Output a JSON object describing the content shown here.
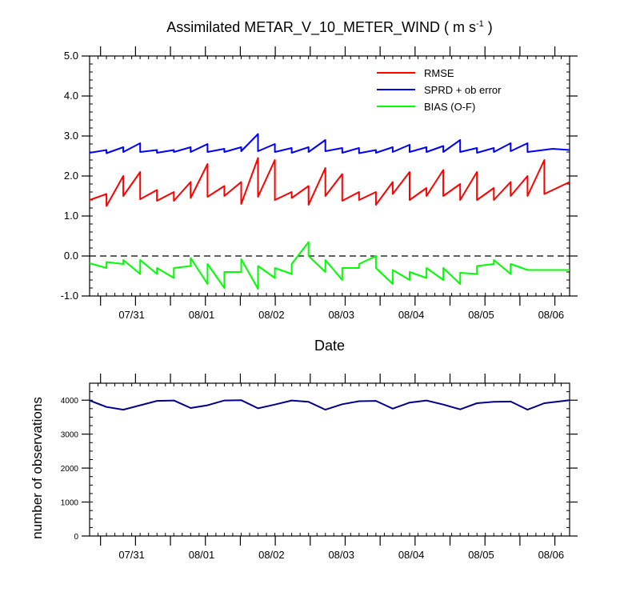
{
  "chart_data": [
    {
      "type": "line",
      "title": "Assimilated METAR_V_10_METER_WIND ( m s",
      "title_superscript": "-1",
      "title_suffix": " )",
      "xlabel": "Date",
      "ylabel": "",
      "ylim": [
        -1.0,
        5.0
      ],
      "yticks": [
        "5.0",
        "4.0",
        "3.0",
        "2.0",
        "1.0",
        "0.0",
        "-1.0"
      ],
      "ytick_values": [
        5,
        4,
        3,
        2,
        1,
        0,
        -1
      ],
      "xlim": [
        0,
        57
      ],
      "x_tick_labels": [
        {
          "label": "07/31",
          "x": 5.0
        },
        {
          "label": "08/01",
          "x": 13.3
        },
        {
          "label": "08/02",
          "x": 21.6
        },
        {
          "label": "08/03",
          "x": 29.9
        },
        {
          "label": "08/04",
          "x": 38.2
        },
        {
          "label": "08/05",
          "x": 46.5
        },
        {
          "label": "08/06",
          "x": 54.8
        }
      ],
      "zero_line": true,
      "legend": {
        "placement": "top-right",
        "entries": [
          {
            "label": "RMSE",
            "color": "#ff0000"
          },
          {
            "label": "SPRD + ob error",
            "color": "#0000ff"
          },
          {
            "label": "BIAS (O-F)",
            "color": "#00ff00"
          }
        ]
      },
      "series": [
        {
          "name": "RMSE",
          "color": "#ff0000",
          "points": [
            [
              0,
              1.4
            ],
            [
              2,
              1.55
            ],
            [
              2,
              1.25
            ],
            [
              4,
              2.0
            ],
            [
              4,
              1.5
            ],
            [
              6,
              2.1
            ],
            [
              6,
              1.42
            ],
            [
              8,
              1.65
            ],
            [
              8,
              1.38
            ],
            [
              10,
              1.6
            ],
            [
              10,
              1.38
            ],
            [
              12,
              1.85
            ],
            [
              12,
              1.45
            ],
            [
              14,
              2.3
            ],
            [
              14,
              1.48
            ],
            [
              16,
              1.75
            ],
            [
              16,
              1.5
            ],
            [
              18,
              1.85
            ],
            [
              18,
              1.3
            ],
            [
              20,
              2.45
            ],
            [
              20,
              1.48
            ],
            [
              22,
              2.4
            ],
            [
              22,
              1.4
            ],
            [
              24,
              1.6
            ],
            [
              24,
              1.45
            ],
            [
              26,
              1.75
            ],
            [
              26,
              1.28
            ],
            [
              28,
              2.2
            ],
            [
              28,
              1.5
            ],
            [
              30,
              2.05
            ],
            [
              30,
              1.38
            ],
            [
              32,
              1.6
            ],
            [
              32,
              1.4
            ],
            [
              34,
              1.6
            ],
            [
              34,
              1.28
            ],
            [
              36,
              1.85
            ],
            [
              36,
              1.55
            ],
            [
              38,
              2.1
            ],
            [
              38,
              1.4
            ],
            [
              40,
              1.7
            ],
            [
              40,
              1.5
            ],
            [
              42,
              2.15
            ],
            [
              42,
              1.5
            ],
            [
              44,
              1.8
            ],
            [
              44,
              1.4
            ],
            [
              46,
              2.1
            ],
            [
              46,
              1.4
            ],
            [
              48,
              1.7
            ],
            [
              48,
              1.4
            ],
            [
              50,
              1.85
            ],
            [
              50,
              1.5
            ],
            [
              52,
              2.0
            ],
            [
              52,
              1.5
            ],
            [
              54,
              2.4
            ],
            [
              54,
              1.55
            ],
            [
              57,
              1.85
            ]
          ]
        },
        {
          "name": "SPRD + ob error",
          "color": "#0000ff",
          "points": [
            [
              0,
              2.58
            ],
            [
              2,
              2.65
            ],
            [
              2,
              2.57
            ],
            [
              4,
              2.72
            ],
            [
              4,
              2.6
            ],
            [
              6,
              2.82
            ],
            [
              6,
              2.6
            ],
            [
              8,
              2.65
            ],
            [
              8,
              2.58
            ],
            [
              10,
              2.65
            ],
            [
              10,
              2.6
            ],
            [
              12,
              2.72
            ],
            [
              12,
              2.6
            ],
            [
              14,
              2.8
            ],
            [
              14,
              2.6
            ],
            [
              16,
              2.68
            ],
            [
              16,
              2.6
            ],
            [
              18,
              2.72
            ],
            [
              18,
              2.62
            ],
            [
              20,
              3.05
            ],
            [
              20,
              2.62
            ],
            [
              22,
              2.8
            ],
            [
              22,
              2.6
            ],
            [
              24,
              2.7
            ],
            [
              24,
              2.58
            ],
            [
              26,
              2.72
            ],
            [
              26,
              2.6
            ],
            [
              28,
              2.9
            ],
            [
              28,
              2.62
            ],
            [
              30,
              2.7
            ],
            [
              30,
              2.58
            ],
            [
              32,
              2.7
            ],
            [
              32,
              2.57
            ],
            [
              34,
              2.65
            ],
            [
              34,
              2.58
            ],
            [
              36,
              2.72
            ],
            [
              36,
              2.6
            ],
            [
              38,
              2.78
            ],
            [
              38,
              2.6
            ],
            [
              40,
              2.72
            ],
            [
              40,
              2.6
            ],
            [
              42,
              2.75
            ],
            [
              42,
              2.6
            ],
            [
              44,
              2.9
            ],
            [
              44,
              2.6
            ],
            [
              46,
              2.7
            ],
            [
              46,
              2.58
            ],
            [
              48,
              2.7
            ],
            [
              48,
              2.6
            ],
            [
              50,
              2.82
            ],
            [
              50,
              2.62
            ],
            [
              52,
              2.82
            ],
            [
              52,
              2.6
            ],
            [
              55,
              2.68
            ],
            [
              57,
              2.65
            ]
          ]
        },
        {
          "name": "BIAS (O-F)",
          "color": "#00ff00",
          "points": [
            [
              0,
              -0.18
            ],
            [
              2,
              -0.3
            ],
            [
              2,
              -0.15
            ],
            [
              4,
              -0.2
            ],
            [
              4,
              -0.1
            ],
            [
              6,
              -0.45
            ],
            [
              6,
              -0.1
            ],
            [
              8,
              -0.45
            ],
            [
              8,
              -0.3
            ],
            [
              10,
              -0.55
            ],
            [
              10,
              -0.3
            ],
            [
              12,
              -0.25
            ],
            [
              12,
              -0.05
            ],
            [
              14,
              -0.7
            ],
            [
              14,
              -0.2
            ],
            [
              16,
              -0.8
            ],
            [
              16,
              -0.4
            ],
            [
              18,
              -0.4
            ],
            [
              18,
              -0.08
            ],
            [
              20,
              -0.82
            ],
            [
              20,
              -0.25
            ],
            [
              22,
              -0.55
            ],
            [
              22,
              -0.3
            ],
            [
              24,
              -0.45
            ],
            [
              24,
              -0.2
            ],
            [
              26,
              0.35
            ],
            [
              26,
              0.0
            ],
            [
              28,
              -0.4
            ],
            [
              28,
              -0.1
            ],
            [
              30,
              -0.6
            ],
            [
              30,
              -0.3
            ],
            [
              32,
              -0.3
            ],
            [
              32,
              -0.2
            ],
            [
              34,
              0.0
            ],
            [
              34,
              -0.3
            ],
            [
              36,
              -0.7
            ],
            [
              36,
              -0.35
            ],
            [
              38,
              -0.6
            ],
            [
              38,
              -0.4
            ],
            [
              40,
              -0.55
            ],
            [
              40,
              -0.3
            ],
            [
              42,
              -0.6
            ],
            [
              42,
              -0.3
            ],
            [
              44,
              -0.7
            ],
            [
              44,
              -0.42
            ],
            [
              46,
              -0.45
            ],
            [
              46,
              -0.25
            ],
            [
              48,
              -0.2
            ],
            [
              48,
              -0.1
            ],
            [
              50,
              -0.45
            ],
            [
              50,
              -0.2
            ],
            [
              52,
              -0.35
            ],
            [
              57,
              -0.35
            ]
          ]
        }
      ]
    },
    {
      "type": "line",
      "title": "",
      "xlabel": "",
      "ylabel": "number of observations",
      "ylim": [
        0,
        4500
      ],
      "yticks": [
        "4000",
        "3000",
        "2000",
        "1000",
        "0"
      ],
      "ytick_values": [
        4000,
        3000,
        2000,
        1000,
        0
      ],
      "xlim": [
        0,
        57
      ],
      "x_tick_labels": [
        {
          "label": "07/31",
          "x": 5.0
        },
        {
          "label": "08/01",
          "x": 13.3
        },
        {
          "label": "08/02",
          "x": 21.6
        },
        {
          "label": "08/03",
          "x": 29.9
        },
        {
          "label": "08/04",
          "x": 38.2
        },
        {
          "label": "08/05",
          "x": 46.5
        },
        {
          "label": "08/06",
          "x": 54.8
        }
      ],
      "series": [
        {
          "name": "number of observations",
          "color": "#00008b",
          "points": [
            [
              0,
              3990
            ],
            [
              2,
              3800
            ],
            [
              4,
              3720
            ],
            [
              6,
              3850
            ],
            [
              8,
              3980
            ],
            [
              10,
              3990
            ],
            [
              12,
              3770
            ],
            [
              14,
              3850
            ],
            [
              16,
              3990
            ],
            [
              18,
              4000
            ],
            [
              20,
              3760
            ],
            [
              22,
              3870
            ],
            [
              24,
              3990
            ],
            [
              26,
              3950
            ],
            [
              28,
              3720
            ],
            [
              30,
              3880
            ],
            [
              32,
              3970
            ],
            [
              34,
              3980
            ],
            [
              36,
              3750
            ],
            [
              38,
              3930
            ],
            [
              40,
              3990
            ],
            [
              42,
              3870
            ],
            [
              44,
              3730
            ],
            [
              46,
              3910
            ],
            [
              48,
              3950
            ],
            [
              50,
              3960
            ],
            [
              52,
              3720
            ],
            [
              54,
              3910
            ],
            [
              57,
              4000
            ]
          ]
        }
      ]
    }
  ]
}
